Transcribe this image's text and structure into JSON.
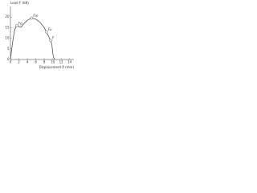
{
  "chart_data": {
    "type": "line",
    "y_label": "Load F (kN)",
    "x_label": "Displacement δ (mm)",
    "x": [
      0,
      0.5,
      1,
      1.5,
      2,
      2.5,
      3,
      4,
      5,
      6,
      7,
      8,
      8.5,
      9,
      9.5,
      9.8,
      10,
      10.2,
      10.5
    ],
    "series": [
      {
        "name": "Load",
        "color": "#555555",
        "values": [
          0,
          8,
          14,
          16,
          15.5,
          15.2,
          16.5,
          18.5,
          19.5,
          19,
          17.5,
          15,
          13,
          11,
          9,
          7,
          3,
          1,
          0
        ]
      }
    ],
    "annotations": [
      {
        "text": "Fp",
        "x": 1.5,
        "y": 16
      },
      {
        "text": "Fm",
        "x": 5,
        "y": 19.5
      },
      {
        "text": "Fu",
        "x": 8.5,
        "y": 13
      },
      {
        "text": "F",
        "x": 9.5,
        "y": 9
      }
    ],
    "xlim": [
      0,
      15
    ],
    "xticks": [
      0,
      2,
      4,
      6,
      8,
      10,
      12,
      14
    ],
    "ylim": [
      0,
      25
    ],
    "yticks": [
      0,
      5,
      10,
      15,
      20
    ]
  }
}
